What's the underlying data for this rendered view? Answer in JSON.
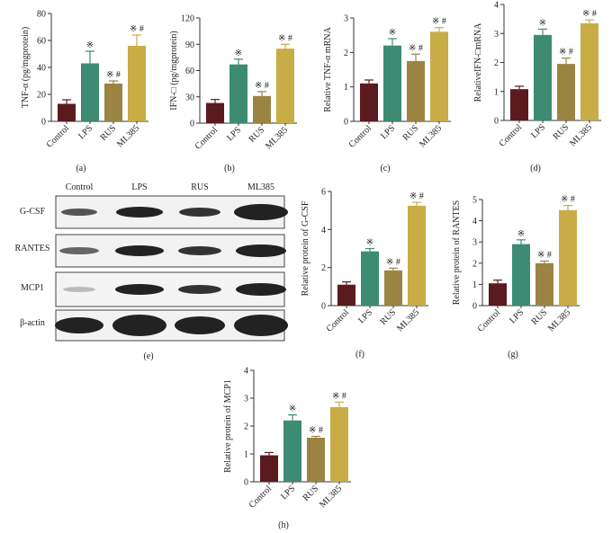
{
  "chart_data": [
    {
      "type": "bar",
      "panel": "(a)",
      "ylabel": "TNF-α (pg/mgprotein)",
      "categories": [
        "Control",
        "LPS",
        "RUS",
        "ML385"
      ],
      "values": [
        13,
        43,
        28,
        56
      ],
      "errors": [
        3,
        9,
        2,
        8
      ],
      "annotations": [
        null,
        "※",
        "※ #",
        "※ #"
      ],
      "colors": [
        "#5a1a1e",
        "#3d8b73",
        "#9b8442",
        "#c8ac46"
      ],
      "ylim": [
        0,
        80
      ],
      "yticks": [
        0,
        20,
        40,
        60,
        80
      ]
    },
    {
      "type": "bar",
      "panel": "(b)",
      "ylabel": "IFN-□ (pg/mgprotein)",
      "categories": [
        "Control",
        "LPS",
        "RUS",
        "ML385"
      ],
      "values": [
        23,
        67,
        31,
        85
      ],
      "errors": [
        4,
        6,
        5,
        5
      ],
      "annotations": [
        null,
        "※",
        "※ #",
        "※ #"
      ],
      "colors": [
        "#5a1a1e",
        "#3d8b73",
        "#9b8442",
        "#c8ac46"
      ],
      "ylim": [
        0,
        120
      ],
      "yticks": [
        0,
        30,
        60,
        90,
        120
      ]
    },
    {
      "type": "bar",
      "panel": "(c)",
      "ylabel": "Relative TNF-α mRNA",
      "categories": [
        "Control",
        "LPS",
        "RUS",
        "ML385"
      ],
      "values": [
        1.1,
        2.2,
        1.75,
        2.6
      ],
      "errors": [
        0.1,
        0.2,
        0.2,
        0.12
      ],
      "annotations": [
        null,
        "※",
        "※ #",
        "※ #"
      ],
      "colors": [
        "#5a1a1e",
        "#3d8b73",
        "#9b8442",
        "#c8ac46"
      ],
      "ylim": [
        0,
        3
      ],
      "yticks": [
        0,
        1,
        2,
        3
      ]
    },
    {
      "type": "bar",
      "panel": "(d)",
      "ylabel": "RelativeIFN-□mRNA",
      "categories": [
        "Control",
        "LPS",
        "RUS",
        "ML385"
      ],
      "values": [
        1.08,
        2.95,
        1.95,
        3.35
      ],
      "errors": [
        0.1,
        0.2,
        0.2,
        0.12
      ],
      "annotations": [
        null,
        "※",
        "※ #",
        "※ #"
      ],
      "colors": [
        "#5a1a1e",
        "#3d8b73",
        "#9b8442",
        "#c8ac46"
      ],
      "ylim": [
        0,
        4
      ],
      "yticks": [
        0,
        1,
        2,
        3,
        4
      ]
    },
    {
      "type": "bar",
      "panel": "(f)",
      "ylabel": "Relative protein of G-CSF",
      "categories": [
        "Control",
        "LPS",
        "RUS",
        "ML385"
      ],
      "values": [
        1.1,
        2.85,
        1.85,
        5.25
      ],
      "errors": [
        0.15,
        0.15,
        0.12,
        0.18
      ],
      "annotations": [
        null,
        "※",
        "※ #",
        "※ #"
      ],
      "colors": [
        "#5a1a1e",
        "#3d8b73",
        "#9b8442",
        "#c8ac46"
      ],
      "ylim": [
        0,
        6
      ],
      "yticks": [
        0,
        2,
        4,
        6
      ]
    },
    {
      "type": "bar",
      "panel": "(g)",
      "ylabel": "Relative protein of RANTES",
      "categories": [
        "Control",
        "LPS",
        "RUS",
        "ML385"
      ],
      "values": [
        1.05,
        2.9,
        2.0,
        4.5
      ],
      "errors": [
        0.15,
        0.2,
        0.1,
        0.22
      ],
      "annotations": [
        null,
        "※",
        "※ #",
        "※ #"
      ],
      "colors": [
        "#5a1a1e",
        "#3d8b73",
        "#9b8442",
        "#c8ac46"
      ],
      "ylim": [
        0,
        5
      ],
      "yticks": [
        0,
        1,
        2,
        3,
        4,
        5
      ]
    },
    {
      "type": "bar",
      "panel": "(h)",
      "ylabel": "Relative protein of MCP1",
      "categories": [
        "Control",
        "LPS",
        "RUS",
        "ML385"
      ],
      "values": [
        0.95,
        2.2,
        1.58,
        2.68
      ],
      "errors": [
        0.1,
        0.2,
        0.05,
        0.18
      ],
      "annotations": [
        null,
        "※",
        "※ #",
        "※ #"
      ],
      "colors": [
        "#5a1a1e",
        "#3d8b73",
        "#9b8442",
        "#c8ac46"
      ],
      "ylim": [
        0,
        4
      ],
      "yticks": [
        0,
        1,
        2,
        3,
        4
      ]
    }
  ],
  "blot": {
    "panel": "(e)",
    "lanes": [
      "Control",
      "LPS",
      "RUS",
      "ML385"
    ],
    "rows": [
      "G-CSF",
      "RANTES",
      "MCP1",
      "β-actin"
    ]
  }
}
